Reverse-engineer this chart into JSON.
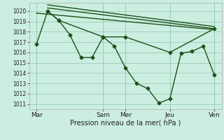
{
  "background_color": "#cceee0",
  "grid_color": "#99ccbb",
  "line_color": "#1a5218",
  "marker": "D",
  "marker_size": 2.5,
  "line_width": 1.0,
  "xlabel": "Pression niveau de la mer( hPa )",
  "xlabel_fontsize": 7,
  "ylim": [
    1010.5,
    1020.8
  ],
  "yticks": [
    1011,
    1012,
    1013,
    1014,
    1015,
    1016,
    1017,
    1018,
    1019,
    1020
  ],
  "ytick_fontsize": 5.5,
  "xtick_labels": [
    "Mar",
    "Sam",
    "Mer",
    "Jeu",
    "Ven"
  ],
  "xtick_positions": [
    0,
    36,
    48,
    72,
    96
  ],
  "xlim": [
    -4,
    100
  ],
  "vlines": [
    0,
    36,
    48,
    72,
    96
  ],
  "series_main": {
    "x": [
      0,
      6,
      12,
      18,
      24,
      30,
      36,
      42,
      48,
      54,
      60,
      66,
      72,
      78,
      84,
      90,
      96
    ],
    "y": [
      1016.8,
      1020.0,
      1019.1,
      1017.7,
      1015.5,
      1015.5,
      1017.5,
      1016.6,
      1014.5,
      1013.0,
      1012.5,
      1011.1,
      1011.5,
      1015.9,
      1016.1,
      1016.6,
      1013.8
    ]
  },
  "series_sparse": {
    "x": [
      6,
      12,
      36,
      48,
      72,
      96
    ],
    "y": [
      1020.0,
      1019.1,
      1017.5,
      1017.5,
      1016.0,
      1018.3
    ]
  },
  "series_line1": {
    "x": [
      6,
      96
    ],
    "y": [
      1020.3,
      1018.3
    ]
  },
  "series_line2": {
    "x": [
      6,
      96
    ],
    "y": [
      1020.6,
      1018.5
    ]
  },
  "series_line3": {
    "x": [
      0,
      96
    ],
    "y": [
      1019.8,
      1018.2
    ]
  }
}
